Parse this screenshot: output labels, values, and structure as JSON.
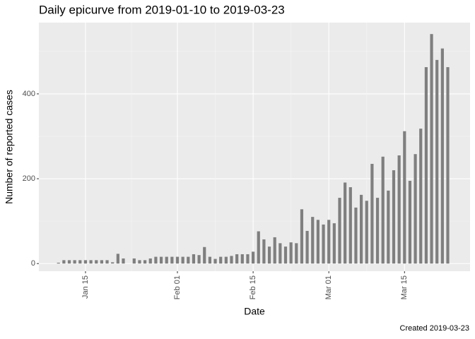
{
  "chart_data": {
    "type": "bar",
    "title": "Daily epicurve from 2019-01-10 to 2019-03-23",
    "x_label": "Date",
    "y_label": "Number of reported cases",
    "caption": "Created 2019-03-23",
    "categories": [
      null,
      null,
      null,
      null,
      null,
      "Jan 15",
      null,
      null,
      null,
      null,
      null,
      null,
      null,
      null,
      null,
      null,
      null,
      null,
      null,
      null,
      null,
      null,
      "Feb 01",
      null,
      null,
      null,
      null,
      null,
      null,
      null,
      null,
      null,
      null,
      null,
      null,
      null,
      "Feb 15",
      null,
      null,
      null,
      null,
      null,
      null,
      null,
      null,
      null,
      null,
      null,
      null,
      null,
      "Mar 01",
      null,
      null,
      null,
      null,
      null,
      null,
      null,
      null,
      null,
      null,
      null,
      null,
      null,
      "Mar 15",
      null,
      null,
      null,
      null,
      null,
      null,
      null,
      null
    ],
    "values": [
      2,
      8,
      8,
      8,
      8,
      8,
      8,
      8,
      8,
      8,
      3,
      23,
      12,
      0,
      12,
      8,
      8,
      12,
      16,
      16,
      16,
      16,
      16,
      16,
      16,
      22,
      20,
      39,
      16,
      11,
      16,
      16,
      18,
      22,
      22,
      22,
      28,
      76,
      57,
      40,
      62,
      48,
      40,
      50,
      48,
      128,
      77,
      110,
      103,
      92,
      103,
      95,
      155,
      191,
      180,
      132,
      162,
      148,
      235,
      155,
      252,
      172,
      220,
      255,
      312,
      195,
      258,
      318,
      463,
      541,
      480,
      507,
      463
    ],
    "color": "#7f7f7f",
    "ylim": [
      -18,
      568
    ],
    "yticks": [
      0,
      200,
      400
    ],
    "grid": true
  }
}
